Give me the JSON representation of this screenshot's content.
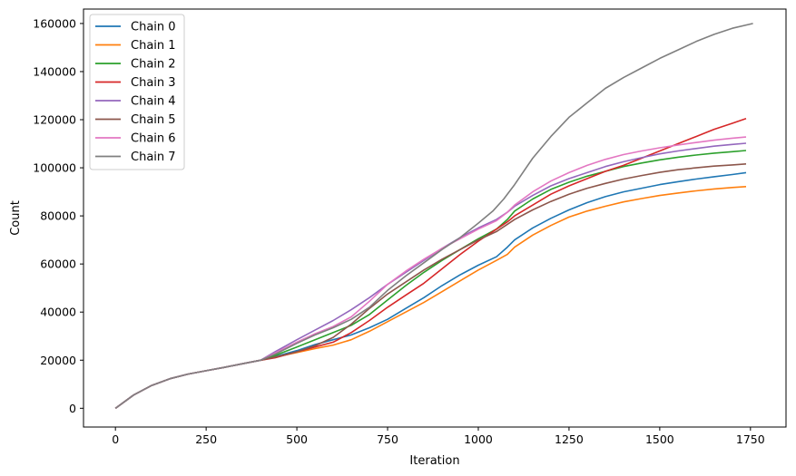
{
  "chart_data": {
    "type": "line",
    "title": "",
    "xlabel": "Iteration",
    "ylabel": "Count",
    "xlim": [
      -88,
      1848
    ],
    "ylim": [
      -7800,
      166000
    ],
    "xticks": [
      0,
      250,
      500,
      750,
      1000,
      1250,
      1500,
      1750
    ],
    "yticks": [
      0,
      20000,
      40000,
      60000,
      80000,
      100000,
      120000,
      140000,
      160000
    ],
    "grid": false,
    "legend_position": "upper left",
    "series": [
      {
        "name": "Chain 0",
        "color": "#1f77b4",
        "x": [
          0,
          50,
          100,
          150,
          200,
          250,
          300,
          350,
          400,
          440,
          500,
          550,
          600,
          650,
          700,
          750,
          800,
          850,
          900,
          950,
          1000,
          1050,
          1080,
          1100,
          1150,
          1200,
          1250,
          1300,
          1350,
          1400,
          1450,
          1500,
          1550,
          1600,
          1650,
          1700,
          1738
        ],
        "y": [
          0,
          5500,
          9500,
          12300,
          14200,
          15600,
          17000,
          18500,
          20000,
          21500,
          24000,
          26500,
          28500,
          30500,
          33500,
          37000,
          41500,
          46000,
          51000,
          55500,
          59500,
          63000,
          67000,
          70000,
          75000,
          79000,
          82500,
          85500,
          88000,
          90000,
          91500,
          93000,
          94200,
          95300,
          96300,
          97200,
          98000
        ]
      },
      {
        "name": "Chain 1",
        "color": "#ff7f0e",
        "x": [
          0,
          50,
          100,
          150,
          200,
          250,
          300,
          350,
          400,
          440,
          500,
          550,
          600,
          650,
          700,
          750,
          800,
          850,
          900,
          950,
          1000,
          1050,
          1080,
          1100,
          1150,
          1200,
          1250,
          1300,
          1350,
          1400,
          1450,
          1500,
          1550,
          1600,
          1650,
          1700,
          1738
        ],
        "y": [
          0,
          5500,
          9500,
          12300,
          14200,
          15600,
          17000,
          18500,
          20000,
          21300,
          23200,
          24800,
          26300,
          28500,
          32000,
          36000,
          40000,
          44000,
          48500,
          53000,
          57500,
          61500,
          64000,
          67000,
          72000,
          76000,
          79500,
          82000,
          84000,
          85800,
          87200,
          88500,
          89500,
          90400,
          91200,
          91800,
          92200
        ]
      },
      {
        "name": "Chain 2",
        "color": "#2ca02c",
        "x": [
          0,
          50,
          100,
          150,
          200,
          250,
          300,
          350,
          400,
          440,
          500,
          550,
          600,
          650,
          700,
          750,
          800,
          850,
          900,
          950,
          1000,
          1050,
          1080,
          1100,
          1150,
          1200,
          1250,
          1300,
          1350,
          1400,
          1450,
          1500,
          1550,
          1600,
          1650,
          1700,
          1738
        ],
        "y": [
          0,
          5500,
          9500,
          12300,
          14200,
          15600,
          17000,
          18500,
          20000,
          22000,
          25500,
          28500,
          31500,
          34500,
          39000,
          45000,
          51000,
          56500,
          61500,
          66000,
          70500,
          74500,
          78500,
          82000,
          87000,
          91000,
          94000,
          96500,
          98500,
          100500,
          102000,
          103300,
          104400,
          105300,
          106100,
          106700,
          107200
        ]
      },
      {
        "name": "Chain 3",
        "color": "#d62728",
        "x": [
          0,
          50,
          100,
          150,
          200,
          250,
          300,
          350,
          400,
          440,
          500,
          550,
          600,
          650,
          700,
          750,
          800,
          850,
          900,
          950,
          1000,
          1050,
          1080,
          1100,
          1150,
          1200,
          1250,
          1300,
          1350,
          1400,
          1450,
          1500,
          1550,
          1600,
          1650,
          1700,
          1738
        ],
        "y": [
          0,
          5500,
          9500,
          12300,
          14200,
          15600,
          17000,
          18500,
          20000,
          21000,
          23500,
          25500,
          27500,
          31500,
          36500,
          42000,
          47000,
          52000,
          58000,
          64000,
          69500,
          74500,
          77500,
          80000,
          84500,
          89000,
          92500,
          95500,
          98500,
          101000,
          104000,
          107000,
          110000,
          113000,
          116000,
          118500,
          120500
        ]
      },
      {
        "name": "Chain 4",
        "color": "#9467bd",
        "x": [
          0,
          50,
          100,
          150,
          200,
          250,
          300,
          350,
          400,
          440,
          500,
          550,
          600,
          650,
          700,
          750,
          800,
          850,
          900,
          950,
          1000,
          1050,
          1080,
          1100,
          1150,
          1200,
          1250,
          1300,
          1350,
          1400,
          1450,
          1500,
          1550,
          1600,
          1650,
          1700,
          1738
        ],
        "y": [
          0,
          5500,
          9500,
          12300,
          14200,
          15600,
          17000,
          18500,
          20000,
          23500,
          28500,
          32500,
          36500,
          41000,
          46000,
          51500,
          56500,
          61500,
          66500,
          71000,
          75000,
          78500,
          81500,
          84000,
          88500,
          92500,
          95500,
          98000,
          100500,
          102500,
          104200,
          105800,
          107000,
          108000,
          109000,
          109700,
          110200
        ]
      },
      {
        "name": "Chain 5",
        "color": "#8c564b",
        "x": [
          0,
          50,
          100,
          150,
          200,
          250,
          300,
          350,
          400,
          440,
          500,
          550,
          600,
          650,
          700,
          750,
          800,
          850,
          900,
          950,
          1000,
          1050,
          1080,
          1100,
          1150,
          1200,
          1250,
          1300,
          1350,
          1400,
          1450,
          1500,
          1550,
          1600,
          1650,
          1700,
          1738
        ],
        "y": [
          0,
          5500,
          9500,
          12300,
          14200,
          15600,
          17000,
          18500,
          20000,
          21300,
          23500,
          26000,
          29500,
          35000,
          41500,
          47500,
          52500,
          57500,
          62000,
          66000,
          70000,
          73500,
          76500,
          78500,
          82500,
          86000,
          89000,
          91500,
          93500,
          95300,
          96800,
          98100,
          99200,
          100000,
          100700,
          101200,
          101600
        ]
      },
      {
        "name": "Chain 6",
        "color": "#e377c2",
        "x": [
          0,
          50,
          100,
          150,
          200,
          250,
          300,
          350,
          400,
          440,
          500,
          550,
          600,
          650,
          700,
          750,
          800,
          850,
          900,
          950,
          1000,
          1050,
          1080,
          1100,
          1150,
          1200,
          1250,
          1300,
          1350,
          1400,
          1450,
          1500,
          1550,
          1600,
          1650,
          1700,
          1738
        ],
        "y": [
          0,
          5500,
          9500,
          12300,
          14200,
          15600,
          17000,
          18500,
          20000,
          23000,
          27500,
          31000,
          34000,
          38000,
          44500,
          51500,
          57000,
          62000,
          66500,
          70500,
          74500,
          78000,
          81500,
          84500,
          90000,
          94500,
          98000,
          101000,
          103500,
          105500,
          107000,
          108300,
          109500,
          110500,
          111500,
          112300,
          112800
        ]
      },
      {
        "name": "Chain 7",
        "color": "#7f7f7f",
        "x": [
          0,
          50,
          100,
          150,
          200,
          250,
          300,
          350,
          400,
          440,
          500,
          550,
          600,
          650,
          700,
          750,
          800,
          850,
          900,
          950,
          1000,
          1040,
          1070,
          1100,
          1150,
          1200,
          1250,
          1300,
          1350,
          1400,
          1450,
          1500,
          1550,
          1600,
          1650,
          1700,
          1757
        ],
        "y": [
          0,
          5500,
          9500,
          12300,
          14200,
          15600,
          17000,
          18500,
          20000,
          22500,
          27000,
          30500,
          33500,
          37000,
          42000,
          49000,
          55000,
          60500,
          66000,
          71000,
          77000,
          82000,
          87000,
          93000,
          104000,
          113000,
          121000,
          127000,
          133000,
          137500,
          141500,
          145500,
          149000,
          152500,
          155500,
          158000,
          160000
        ]
      }
    ]
  }
}
